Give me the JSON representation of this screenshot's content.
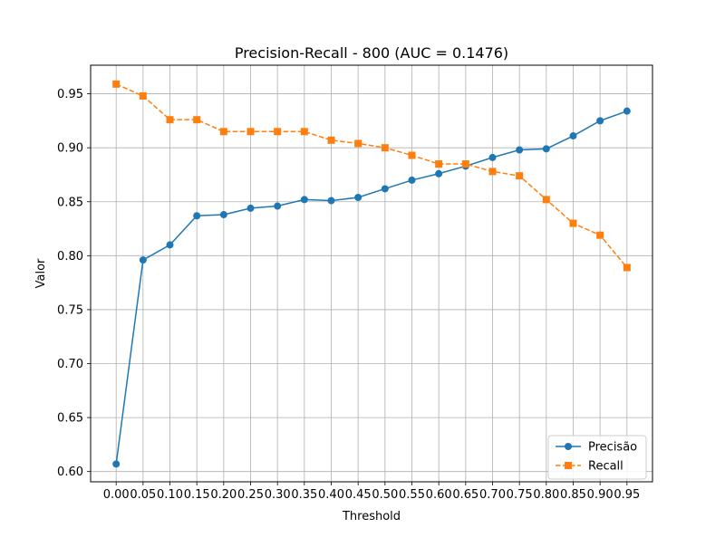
{
  "chart_data": {
    "type": "line",
    "title": "Precision-Recall - 800 (AUC = 0.1476)",
    "xlabel": "Threshold",
    "ylabel": "Valor",
    "x": [
      0.0,
      0.05,
      0.1,
      0.15,
      0.2,
      0.25,
      0.3,
      0.35,
      0.4,
      0.45,
      0.5,
      0.55,
      0.6,
      0.65,
      0.7,
      0.75,
      0.8,
      0.85,
      0.9,
      0.95
    ],
    "x_tick_labels": [
      "0.00",
      "0.05",
      "0.10",
      "0.15",
      "0.20",
      "0.25",
      "0.30",
      "0.35",
      "0.40",
      "0.45",
      "0.50",
      "0.55",
      "0.60",
      "0.65",
      "0.70",
      "0.75",
      "0.80",
      "0.85",
      "0.90",
      "0.95"
    ],
    "y_tick_labels": [
      "0.60",
      "0.65",
      "0.70",
      "0.75",
      "0.80",
      "0.85",
      "0.90",
      "0.95"
    ],
    "y_ticks": [
      0.6,
      0.65,
      0.7,
      0.75,
      0.8,
      0.85,
      0.9,
      0.95
    ],
    "xlim": [
      -0.0475,
      0.9975
    ],
    "ylim": [
      0.5905,
      0.9765
    ],
    "grid": true,
    "legend_position": "lower-right",
    "series": [
      {
        "name": "Precisão",
        "color": "#1f77b4",
        "line_style": "solid",
        "marker": "circle",
        "values": [
          0.607,
          0.796,
          0.81,
          0.837,
          0.838,
          0.844,
          0.846,
          0.852,
          0.851,
          0.854,
          0.862,
          0.87,
          0.876,
          0.883,
          0.891,
          0.898,
          0.899,
          0.911,
          0.925,
          0.934
        ]
      },
      {
        "name": "Recall",
        "color": "#ff7f0e",
        "line_style": "dashed",
        "marker": "square",
        "values": [
          0.959,
          0.948,
          0.926,
          0.926,
          0.915,
          0.915,
          0.915,
          0.915,
          0.907,
          0.904,
          0.9,
          0.893,
          0.885,
          0.885,
          0.878,
          0.874,
          0.852,
          0.83,
          0.819,
          0.789
        ]
      }
    ]
  }
}
